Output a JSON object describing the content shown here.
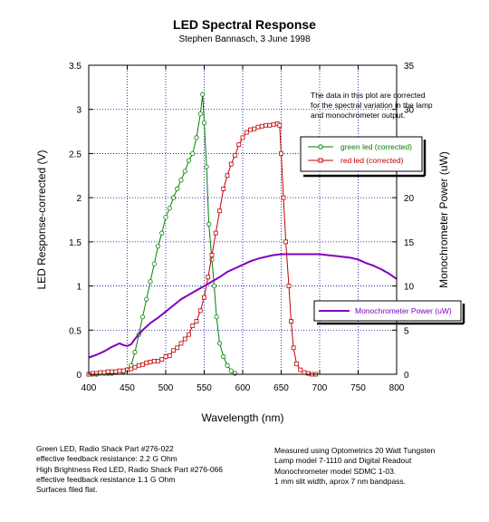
{
  "chart_data": {
    "type": "line",
    "title": "LED Spectral Response",
    "subtitle": "Stephen Bannasch, 3 June 1998",
    "xlabel": "Wavelength (nm)",
    "ylabel_left": "LED Response-corrected (V)",
    "ylabel_right": "Monochrometer Power (uW)",
    "xlim": [
      400,
      800
    ],
    "ylim_left": [
      0,
      3.5
    ],
    "ylim_right": [
      0,
      35
    ],
    "x_ticks": [
      "400",
      "450",
      "500",
      "550",
      "600",
      "650",
      "700",
      "750",
      "800"
    ],
    "y_left_ticks": [
      "0",
      "0.5",
      "1",
      "1.5",
      "2",
      "2.5",
      "3",
      "3.5"
    ],
    "y_right_ticks": [
      "0",
      "5",
      "10",
      "15",
      "20",
      "25",
      "30",
      "35"
    ],
    "grid": true,
    "annotation": "The data in this plot are corrected\nfor the spectral  variation in the lamp\nand monochrometer output.",
    "series": [
      {
        "name": "green led (corrected)",
        "color": "#008000",
        "marker": "circle",
        "axis": "left",
        "points": [
          [
            400,
            0.0
          ],
          [
            405,
            0.0
          ],
          [
            410,
            0.0
          ],
          [
            415,
            0.01
          ],
          [
            420,
            0.01
          ],
          [
            425,
            0.01
          ],
          [
            430,
            0.01
          ],
          [
            435,
            0.02
          ],
          [
            440,
            0.02
          ],
          [
            445,
            0.03
          ],
          [
            450,
            0.05
          ],
          [
            455,
            0.1
          ],
          [
            460,
            0.25
          ],
          [
            465,
            0.45
          ],
          [
            470,
            0.65
          ],
          [
            475,
            0.85
          ],
          [
            480,
            1.05
          ],
          [
            485,
            1.25
          ],
          [
            490,
            1.45
          ],
          [
            495,
            1.6
          ],
          [
            500,
            1.78
          ],
          [
            505,
            1.88
          ],
          [
            510,
            2.0
          ],
          [
            515,
            2.1
          ],
          [
            520,
            2.2
          ],
          [
            525,
            2.3
          ],
          [
            530,
            2.42
          ],
          [
            535,
            2.5
          ],
          [
            540,
            2.68
          ],
          [
            545,
            2.95
          ],
          [
            548,
            3.17
          ],
          [
            550,
            2.85
          ],
          [
            553,
            2.35
          ],
          [
            556,
            1.7
          ],
          [
            560,
            1.3
          ],
          [
            563,
            1.0
          ],
          [
            566,
            0.65
          ],
          [
            570,
            0.35
          ],
          [
            575,
            0.2
          ],
          [
            580,
            0.1
          ],
          [
            585,
            0.04
          ],
          [
            590,
            0.01
          ]
        ]
      },
      {
        "name": "red led (corrected)",
        "color": "#c00000",
        "marker": "square",
        "axis": "left",
        "points": [
          [
            400,
            0.0
          ],
          [
            405,
            0.01
          ],
          [
            410,
            0.01
          ],
          [
            415,
            0.02
          ],
          [
            420,
            0.02
          ],
          [
            425,
            0.03
          ],
          [
            430,
            0.03
          ],
          [
            435,
            0.03
          ],
          [
            440,
            0.04
          ],
          [
            445,
            0.04
          ],
          [
            450,
            0.05
          ],
          [
            455,
            0.06
          ],
          [
            460,
            0.08
          ],
          [
            465,
            0.1
          ],
          [
            470,
            0.11
          ],
          [
            475,
            0.13
          ],
          [
            480,
            0.14
          ],
          [
            485,
            0.15
          ],
          [
            490,
            0.15
          ],
          [
            495,
            0.17
          ],
          [
            500,
            0.2
          ],
          [
            505,
            0.21
          ],
          [
            510,
            0.27
          ],
          [
            515,
            0.3
          ],
          [
            520,
            0.35
          ],
          [
            525,
            0.4
          ],
          [
            530,
            0.45
          ],
          [
            535,
            0.55
          ],
          [
            540,
            0.6
          ],
          [
            545,
            0.72
          ],
          [
            550,
            0.87
          ],
          [
            555,
            1.1
          ],
          [
            560,
            1.35
          ],
          [
            565,
            1.6
          ],
          [
            570,
            1.85
          ],
          [
            575,
            2.1
          ],
          [
            580,
            2.25
          ],
          [
            585,
            2.38
          ],
          [
            590,
            2.48
          ],
          [
            595,
            2.6
          ],
          [
            600,
            2.68
          ],
          [
            605,
            2.74
          ],
          [
            610,
            2.77
          ],
          [
            615,
            2.78
          ],
          [
            620,
            2.8
          ],
          [
            625,
            2.81
          ],
          [
            630,
            2.82
          ],
          [
            635,
            2.82
          ],
          [
            640,
            2.83
          ],
          [
            645,
            2.84
          ],
          [
            648,
            2.82
          ],
          [
            650,
            2.5
          ],
          [
            653,
            2.0
          ],
          [
            656,
            1.5
          ],
          [
            660,
            1.0
          ],
          [
            663,
            0.6
          ],
          [
            666,
            0.3
          ],
          [
            670,
            0.12
          ],
          [
            675,
            0.05
          ],
          [
            680,
            0.02
          ],
          [
            685,
            0.01
          ],
          [
            690,
            0.0
          ],
          [
            695,
            0.0
          ]
        ]
      },
      {
        "name": "Monochrometer Power (uW)",
        "color": "#8000c0",
        "marker": "none",
        "axis": "right",
        "points": [
          [
            400,
            1.9
          ],
          [
            410,
            2.2
          ],
          [
            420,
            2.6
          ],
          [
            430,
            3.1
          ],
          [
            440,
            3.5
          ],
          [
            445,
            3.3
          ],
          [
            450,
            3.2
          ],
          [
            455,
            3.4
          ],
          [
            460,
            4.0
          ],
          [
            470,
            5.0
          ],
          [
            480,
            5.8
          ],
          [
            490,
            6.4
          ],
          [
            500,
            7.1
          ],
          [
            510,
            7.8
          ],
          [
            520,
            8.5
          ],
          [
            530,
            9.0
          ],
          [
            540,
            9.5
          ],
          [
            550,
            10.0
          ],
          [
            560,
            10.5
          ],
          [
            570,
            11.0
          ],
          [
            580,
            11.6
          ],
          [
            590,
            12.0
          ],
          [
            600,
            12.4
          ],
          [
            610,
            12.8
          ],
          [
            620,
            13.1
          ],
          [
            630,
            13.3
          ],
          [
            640,
            13.5
          ],
          [
            650,
            13.6
          ],
          [
            660,
            13.6
          ],
          [
            670,
            13.6
          ],
          [
            680,
            13.6
          ],
          [
            690,
            13.6
          ],
          [
            700,
            13.6
          ],
          [
            710,
            13.5
          ],
          [
            720,
            13.4
          ],
          [
            730,
            13.3
          ],
          [
            740,
            13.2
          ],
          [
            750,
            13.0
          ],
          [
            760,
            12.6
          ],
          [
            770,
            12.3
          ],
          [
            780,
            11.9
          ],
          [
            790,
            11.4
          ],
          [
            800,
            10.8
          ]
        ]
      }
    ]
  },
  "notes": {
    "left": "Green LED, Radio Shack Part #276-022\neffective feedback resistance: 2.2 G Ohm\nHigh Brightness Red LED, Radio Shack Part #276-066\neffective feedback resistance 1.1 G Ohm\nSurfaces filed flat.",
    "right": "Measured using Optometrics 20 Watt Tungsten\nLamp model 7-1110 and Digital Readout\nMonochrometer model SDMC 1-03.\n1 mm slit width, aprox 7 nm bandpass."
  }
}
